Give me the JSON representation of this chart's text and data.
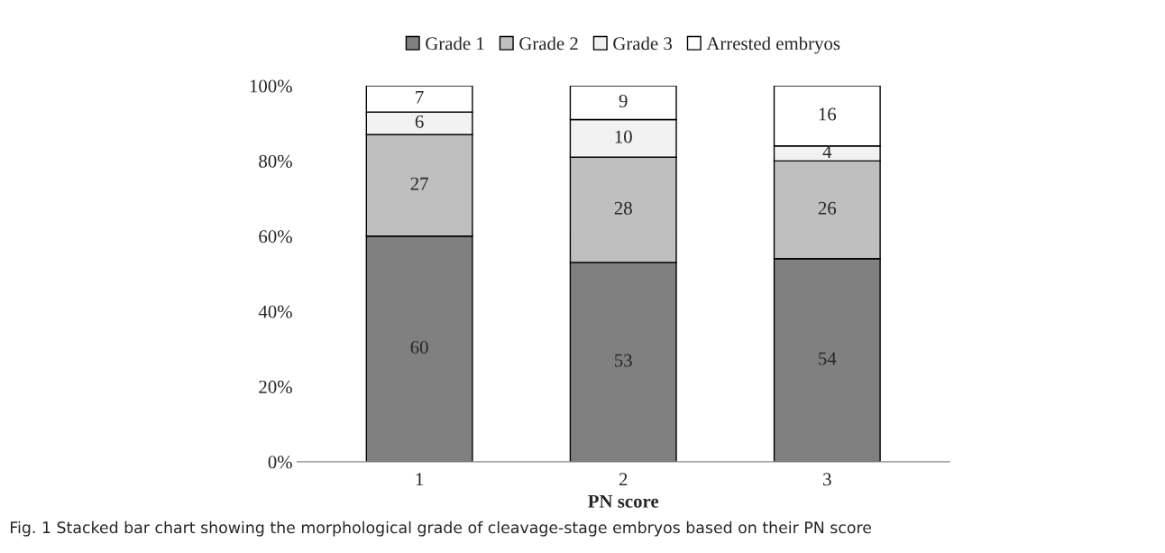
{
  "chart_data": {
    "type": "bar",
    "stacked": true,
    "categories": [
      "1",
      "2",
      "3"
    ],
    "series": [
      {
        "name": "Grade 1",
        "color": "#808080",
        "values": [
          60,
          53,
          54
        ]
      },
      {
        "name": "Grade 2",
        "color": "#bfbfbf",
        "values": [
          27,
          28,
          26
        ]
      },
      {
        "name": "Grade 3",
        "color": "#f2f2f2",
        "values": [
          6,
          10,
          4
        ]
      },
      {
        "name": "Arrested embryos",
        "color": "#ffffff",
        "values": [
          7,
          9,
          16
        ]
      }
    ],
    "xlabel": "PN score",
    "ylim": [
      0,
      100
    ],
    "yticks": [
      {
        "value": 0,
        "label": "0%"
      },
      {
        "value": 20,
        "label": "20%"
      },
      {
        "value": 40,
        "label": "40%"
      },
      {
        "value": 60,
        "label": "60%"
      },
      {
        "value": 80,
        "label": "80%"
      },
      {
        "value": 100,
        "label": "100%"
      }
    ],
    "data_labels": true,
    "legend": "top",
    "grid": false,
    "annotations": [
      "Fig. 1 Stacked bar chart showing the morphological grade of cleavage-stage embryos based on their PN score"
    ]
  }
}
